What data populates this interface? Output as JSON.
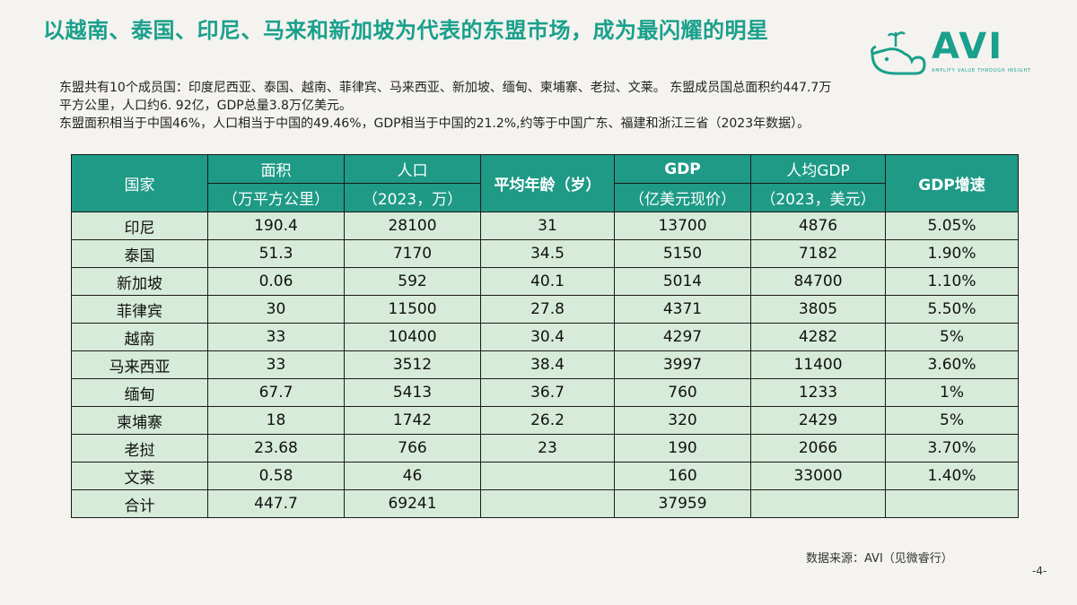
{
  "title": "以越南、泰国、印尼、马来和新加坡为代表的东盟市场，成为最闪耀的明星",
  "logo": {
    "word": "AVI",
    "tagline": "AMPLIFY VALUE THROUGH INSIGHT"
  },
  "intro": {
    "line1": "东盟共有10个成员国：印度尼西亚、泰国、越南、菲律宾、马来西亚、新加坡、缅甸、柬埔寨、老挝、文莱。 东盟成员国总面积约447.7万",
    "line2": "平方公里，人口约6. 92亿，GDP总量3.8万亿美元。",
    "line3": "东盟面积相当于中国46%，人口相当于中国的49.46%，GDP相当于中国的21.2%,约等于中国广东、福建和浙江三省（2023年数据）。"
  },
  "table": {
    "headers": {
      "country": "国家",
      "area": "面积",
      "area_unit": "（万平方公里）",
      "population": "人口",
      "population_unit": "（2023，万）",
      "avg_age": "平均年龄（岁）",
      "gdp": "GDP",
      "gdp_unit": "（亿美元现价）",
      "gdp_per_capita": "人均GDP",
      "gdp_per_capita_unit": "（2023，美元）",
      "gdp_growth": "GDP增速"
    },
    "rows": [
      [
        "印尼",
        "190.4",
        "28100",
        "31",
        "13700",
        "4876",
        "5.05%"
      ],
      [
        "泰国",
        "51.3",
        "7170",
        "34.5",
        "5150",
        "7182",
        "1.90%"
      ],
      [
        "新加坡",
        "0.06",
        "592",
        "40.1",
        "5014",
        "84700",
        "1.10%"
      ],
      [
        "菲律宾",
        "30",
        "11500",
        "27.8",
        "4371",
        "3805",
        "5.50%"
      ],
      [
        "越南",
        "33",
        "10400",
        "30.4",
        "4297",
        "4282",
        "5%"
      ],
      [
        "马来西亚",
        "33",
        "3512",
        "38.4",
        "3997",
        "11400",
        "3.60%"
      ],
      [
        "缅甸",
        "67.7",
        "5413",
        "36.7",
        "760",
        "1233",
        "1%"
      ],
      [
        "柬埔寨",
        "18",
        "1742",
        "26.2",
        "320",
        "2429",
        "5%"
      ],
      [
        "老挝",
        "23.68",
        "766",
        "23",
        "190",
        "2066",
        "3.70%"
      ],
      [
        "文莱",
        "0.58",
        "46",
        "",
        "160",
        "33000",
        "1.40%"
      ],
      [
        "合计",
        "447.7",
        "69241",
        "",
        "37959",
        "",
        ""
      ]
    ]
  },
  "source": "数据来源：AVI（见微睿行）",
  "page_number": "-4-",
  "colors": {
    "accent": "#1aa08c",
    "header_bg": "#1e9a86",
    "cell_bg": "#d6ebd9",
    "background": "#f4f3ef"
  }
}
